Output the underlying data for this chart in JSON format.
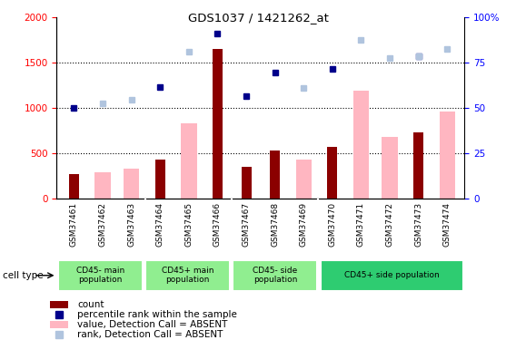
{
  "title": "GDS1037 / 1421262_at",
  "samples": [
    "GSM37461",
    "GSM37462",
    "GSM37463",
    "GSM37464",
    "GSM37465",
    "GSM37466",
    "GSM37467",
    "GSM37468",
    "GSM37469",
    "GSM37470",
    "GSM37471",
    "GSM37472",
    "GSM37473",
    "GSM37474"
  ],
  "count_values": [
    270,
    null,
    null,
    430,
    null,
    1650,
    350,
    530,
    null,
    570,
    null,
    null,
    730,
    null
  ],
  "absent_value_bars": [
    null,
    290,
    330,
    null,
    830,
    null,
    null,
    null,
    430,
    null,
    1190,
    680,
    null,
    960
  ],
  "percentile_rank": [
    1000,
    null,
    null,
    1230,
    null,
    1820,
    1130,
    1390,
    null,
    1430,
    null,
    null,
    1570,
    null
  ],
  "absent_rank": [
    null,
    1050,
    1090,
    null,
    1620,
    null,
    null,
    null,
    1220,
    null,
    1750,
    1550,
    1570,
    1650
  ],
  "cell_types": [
    {
      "label": "CD45- main\npopulation",
      "start": 0,
      "end": 3,
      "color": "#90EE90"
    },
    {
      "label": "CD45+ main\npopulation",
      "start": 3,
      "end": 6,
      "color": "#90EE90"
    },
    {
      "label": "CD45- side\npopulation",
      "start": 6,
      "end": 9,
      "color": "#90EE90"
    },
    {
      "label": "CD45+ side population",
      "start": 9,
      "end": 14,
      "color": "#2ECC71"
    }
  ],
  "ylim_left": [
    0,
    2000
  ],
  "ylim_right": [
    0,
    100
  ],
  "left_ticks": [
    0,
    500,
    1000,
    1500,
    2000
  ],
  "right_ticks": [
    0,
    25,
    50,
    75,
    100
  ],
  "count_color": "#8B0000",
  "absent_bar_color": "#FFB6C1",
  "rank_color": "#00008B",
  "absent_rank_color": "#B0C4DE",
  "legend_items": [
    {
      "color": "#8B0000",
      "label": "count",
      "type": "rect"
    },
    {
      "color": "#00008B",
      "label": "percentile rank within the sample",
      "type": "square"
    },
    {
      "color": "#FFB6C1",
      "label": "value, Detection Call = ABSENT",
      "type": "rect"
    },
    {
      "color": "#B0C4DE",
      "label": "rank, Detection Call = ABSENT",
      "type": "square"
    }
  ]
}
